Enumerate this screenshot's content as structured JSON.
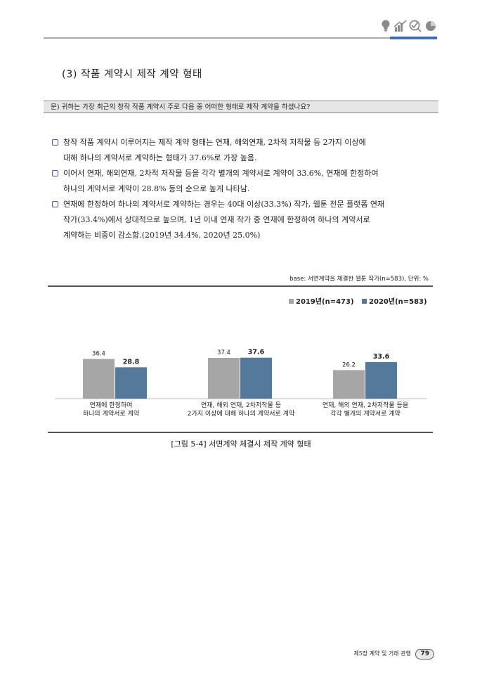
{
  "section_title": "(3) 작품 계약시 제작 계약 형태",
  "question": "문) 귀하는 가장 최근의 창작 작품 계약시 주로 다음 중 어떠한 형태로 제작 계약을 하셨나요?",
  "bullets": [
    {
      "line1": "창작 작품 계약시 이루어지는 제작 계약 형태는 연재, 해외연재, 2차적 저작물 등 2가지 이상에",
      "line2": "대해 하나의 계약서로 계약하는 형태가 37.6%로 가장 높음.",
      "line3": ""
    },
    {
      "line1": "이어서 연재, 해외연재, 2차적 저작물 등을 각각 별개의 계약서로 계약이 33.6%, 연재에 한정하여",
      "line2": "하나의 계약서로 계약이 28.8% 등의 순으로 높게 나타남.",
      "line3": ""
    },
    {
      "line1": "연재에 한정하여 하나의 계약서로 계약하는 경우는 40대 이상(33.3%) 작가, 웹툰 전문 플랫폼 연재",
      "line2": "작가(33.4%)에서 상대적으로 높으며, 1년 이내 연재 작가 중 연재에 한정하여 하나의 계약서로",
      "line3": "계약하는 비중이 감소함.(2019년 34.4%, 2020년 25.0%)"
    }
  ],
  "base_note": "base: 서면계약을 체결한 웹툰 작가(n=583), 단위: %",
  "chart_data": {
    "type": "bar",
    "categories": [
      [
        "연재에 한정하여",
        "하나의 계약서로 계약"
      ],
      [
        "연재, 해외 연재, 2차저작물 등",
        "2가지 이상에 대해 하나의 계약서로 계약"
      ],
      [
        "연재, 해외 연재, 2차저작물 등을",
        "각각 별개의 계약서로 계약"
      ]
    ],
    "series": [
      {
        "name": "2019년(n=473)",
        "values": [
          36.4,
          37.4,
          26.2
        ],
        "color": "#a6a6a6"
      },
      {
        "name": "2020년(n=583)",
        "values": [
          28.8,
          37.6,
          33.6
        ],
        "color": "#54799b"
      }
    ],
    "legend_position": "top-right",
    "grid": false
  },
  "caption": "[그림 5-4] 서면계약 체결시 제작 계약 형태",
  "footer": {
    "chapter": "제5장 계약 및 거래 관행",
    "page": "79"
  }
}
